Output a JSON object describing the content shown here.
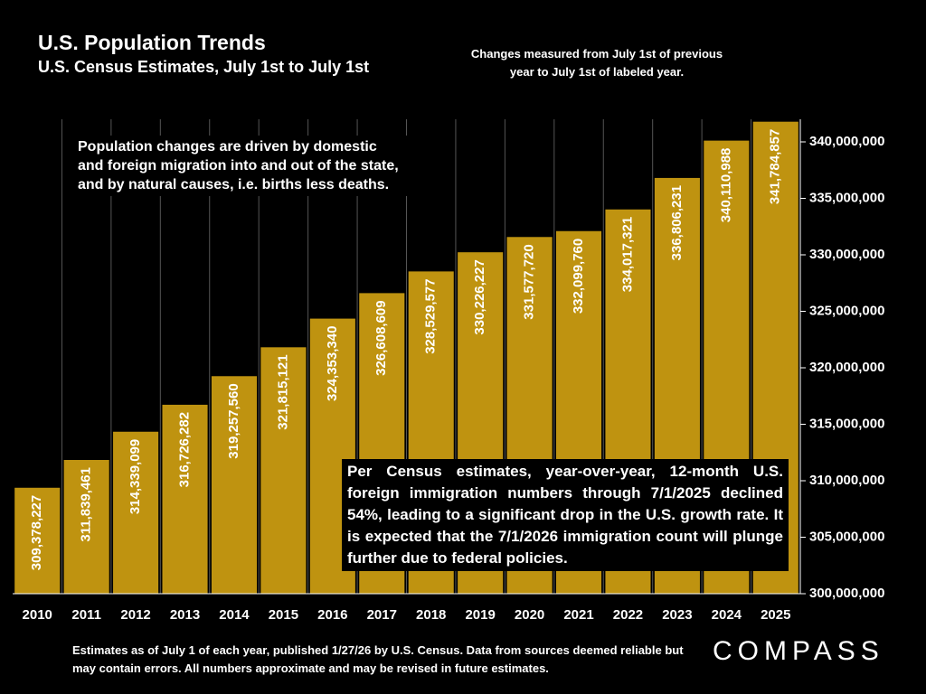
{
  "chart_data": {
    "type": "bar",
    "title": "U.S. Population Trends",
    "subtitle": "U.S. Census Estimates, July 1st to July 1st",
    "note": "Changes measured from July 1st of previous year to July 1st of labeled year.",
    "annotations": [
      "Population changes are driven by domestic and foreign migration into and out of the state, and by natural causes, i.e. births less deaths.",
      "Per Census estimates, year-over-year, 12-month U.S. foreign immigration numbers through 7/1/2025 declined 54%, leading to a significant drop in the U.S. growth rate. It is expected that the 7/1/2026 immigration count will plunge further due to federal policies."
    ],
    "footer": "Estimates as of July 1 of each year, published 1/27/26 by U.S. Census. Data from sources deemed reliable but may contain errors. All numbers approximate and may be revised in future estimates.",
    "logo": "COMPASS",
    "categories": [
      "2010",
      "2011",
      "2012",
      "2013",
      "2014",
      "2015",
      "2016",
      "2017",
      "2018",
      "2019",
      "2020",
      "2021",
      "2022",
      "2023",
      "2024",
      "2025"
    ],
    "values": [
      309378227,
      311839461,
      314339099,
      316726282,
      319257560,
      321815121,
      324353340,
      326608609,
      328529577,
      330226227,
      331577720,
      332099760,
      334017321,
      336806231,
      340110988,
      341784857
    ],
    "value_labels": [
      "309,378,227",
      "311,839,461",
      "314,339,099",
      "316,726,282",
      "319,257,560",
      "321,815,121",
      "324,353,340",
      "326,608,609",
      "328,529,577",
      "330,226,227",
      "331,577,720",
      "332,099,760",
      "334,017,321",
      "336,806,231",
      "340,110,988",
      "341,784,857"
    ],
    "color": "#bf9310",
    "ylim": [
      300000000,
      342000000
    ],
    "yticks": [
      {
        "value": 300000000,
        "label": "300,000,000"
      },
      {
        "value": 305000000,
        "label": "305,000,000"
      },
      {
        "value": 310000000,
        "label": "310,000,000"
      },
      {
        "value": 315000000,
        "label": "315,000,000"
      },
      {
        "value": 320000000,
        "label": "320,000,000"
      },
      {
        "value": 325000000,
        "label": "325,000,000"
      },
      {
        "value": 330000000,
        "label": "330,000,000"
      },
      {
        "value": 335000000,
        "label": "335,000,000"
      },
      {
        "value": 340000000,
        "label": "340,000,000"
      }
    ],
    "grid": false
  }
}
